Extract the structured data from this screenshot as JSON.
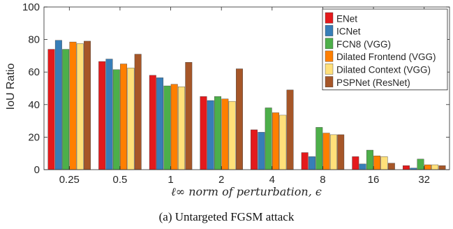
{
  "caption": "(a) Untargeted FGSM attack",
  "chart_data": {
    "type": "bar",
    "categories": [
      "0.25",
      "0.5",
      "1",
      "2",
      "4",
      "8",
      "16",
      "32"
    ],
    "ylabel": "IoU Ratio",
    "xlabel": "ℓ∞ norm of perturbation, ϵ",
    "ylim": [
      0,
      100
    ],
    "yticks": [
      0,
      20,
      40,
      60,
      80,
      100
    ],
    "grid": false,
    "legend_position": "top-right",
    "series": [
      {
        "name": "ENet",
        "color": "#e41a1c",
        "values": [
          74,
          66.5,
          58,
          45,
          24.5,
          10.5,
          8,
          2.5
        ]
      },
      {
        "name": "ICNet",
        "color": "#377eb8",
        "values": [
          79.5,
          68,
          56.5,
          42.5,
          23,
          8,
          3.5,
          1
        ]
      },
      {
        "name": "FCN8 (VGG)",
        "color": "#4daf4a",
        "values": [
          74,
          61.5,
          51.5,
          45,
          38,
          26,
          12,
          6.5
        ]
      },
      {
        "name": "Dilated Frontend (VGG)",
        "color": "#ff7f00",
        "values": [
          78.5,
          65,
          52.5,
          43.5,
          35,
          22.5,
          8.5,
          3
        ]
      },
      {
        "name": "Dilated Context (VGG)",
        "color": "#ffe07a",
        "values": [
          77.5,
          62.5,
          51,
          42,
          33.5,
          21.5,
          8,
          3
        ]
      },
      {
        "name": "PSPNet (ResNet)",
        "color": "#a65628",
        "values": [
          79,
          71,
          66,
          62,
          49,
          21.5,
          4,
          2.5
        ]
      }
    ]
  }
}
